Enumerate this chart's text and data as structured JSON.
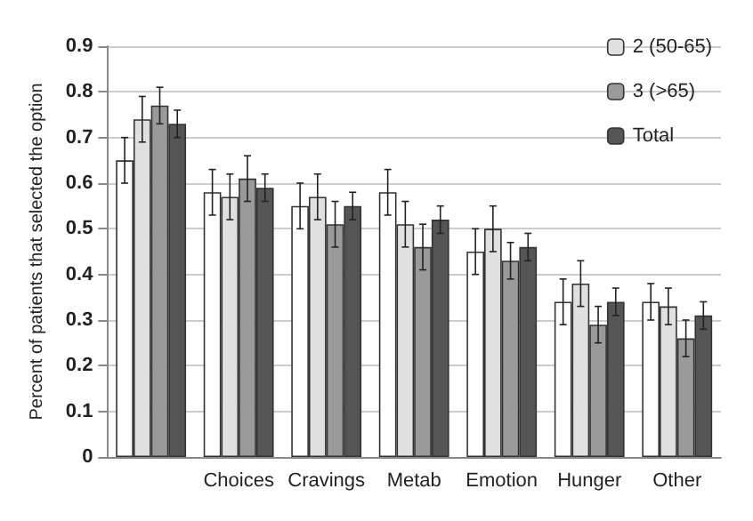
{
  "chart_data": {
    "type": "bar",
    "ylabel": "Percent of patients that selected the option",
    "categories": [
      null,
      "Choices",
      "Cravings",
      "Metab",
      "Emotion",
      "Hunger",
      "Other"
    ],
    "series": [
      {
        "color": "#ffffff",
        "values": [
          0.65,
          0.58,
          0.55,
          0.58,
          0.45,
          0.34,
          0.34
        ],
        "errors": [
          0.05,
          0.05,
          0.05,
          0.05,
          0.05,
          0.05,
          0.04
        ]
      },
      {
        "name": "2 (50-65)",
        "color": "#e0e0e0",
        "values": [
          0.74,
          0.57,
          0.57,
          0.51,
          0.5,
          0.38,
          0.33
        ],
        "errors": [
          0.05,
          0.05,
          0.05,
          0.05,
          0.05,
          0.05,
          0.04
        ]
      },
      {
        "name": "3 (>65)",
        "color": "#9a9a9a",
        "values": [
          0.77,
          0.61,
          0.51,
          0.46,
          0.43,
          0.29,
          0.26
        ],
        "errors": [
          0.04,
          0.05,
          0.05,
          0.05,
          0.04,
          0.04,
          0.04
        ]
      },
      {
        "name": "Total",
        "color": "#555555",
        "values": [
          0.73,
          0.59,
          0.55,
          0.52,
          0.46,
          0.34,
          0.31
        ],
        "errors": [
          0.03,
          0.03,
          0.03,
          0.03,
          0.03,
          0.03,
          0.03
        ]
      }
    ],
    "ylim": [
      0,
      0.9
    ],
    "yticks": [
      0,
      0.1,
      0.2,
      0.3,
      0.4,
      0.5,
      0.6,
      0.7,
      0.8,
      0.9
    ],
    "grid": "y",
    "legend": "top right"
  }
}
